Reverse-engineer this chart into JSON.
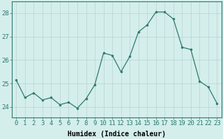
{
  "x": [
    0,
    1,
    2,
    3,
    4,
    5,
    6,
    7,
    8,
    9,
    10,
    11,
    12,
    13,
    14,
    15,
    16,
    17,
    18,
    19,
    20,
    21,
    22,
    23
  ],
  "y": [
    25.15,
    24.4,
    24.6,
    24.3,
    24.4,
    24.1,
    24.2,
    23.95,
    24.35,
    24.95,
    26.3,
    26.2,
    25.5,
    26.15,
    27.2,
    27.5,
    28.05,
    28.05,
    27.75,
    26.55,
    26.45,
    25.1,
    24.85,
    24.15
  ],
  "line_color": "#2d7a6e",
  "marker": "o",
  "marker_size": 2,
  "bg_color": "#d4eeec",
  "grid_color": "#b8d4d2",
  "xlabel": "Humidex (Indice chaleur)",
  "xlabel_fontsize": 7,
  "ylabel_ticks": [
    24,
    25,
    26,
    27,
    28
  ],
  "xlim": [
    -0.5,
    23.5
  ],
  "ylim": [
    23.55,
    28.5
  ],
  "tick_fontsize": 6.5
}
